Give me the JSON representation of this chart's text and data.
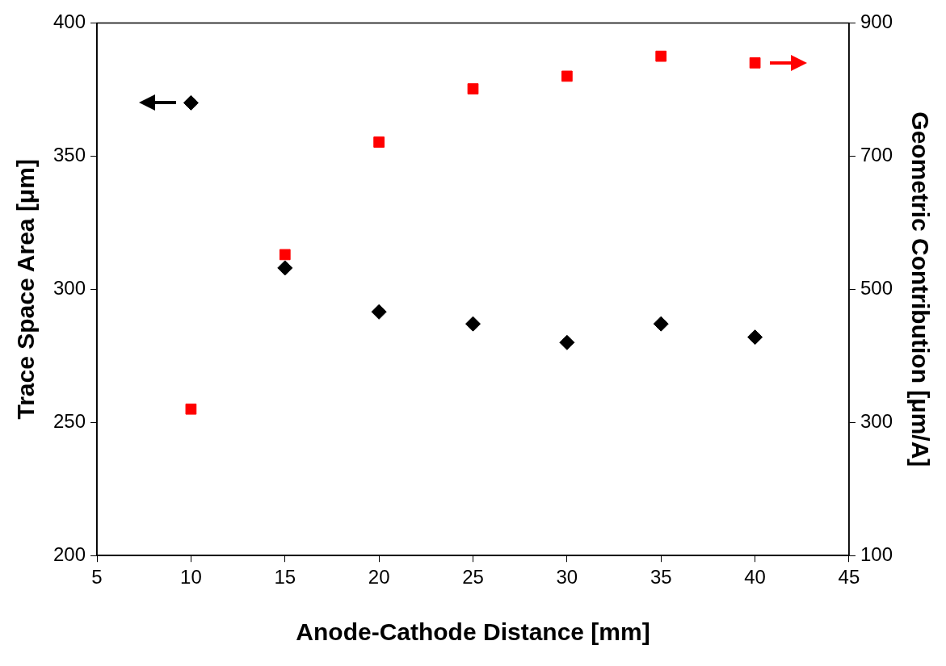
{
  "chart_data": {
    "type": "scatter",
    "xlabel": "Anode-Cathode Distance [mm]",
    "ylabel": "Trace Space Area [μm]",
    "y2label": "Geometric Contribution [μm/A]",
    "xlim": [
      5,
      45
    ],
    "xticks": [
      5,
      10,
      15,
      20,
      25,
      30,
      35,
      40,
      45
    ],
    "ylim": [
      200,
      400
    ],
    "yticks": [
      200,
      250,
      300,
      350,
      400
    ],
    "y2lim": [
      100,
      900
    ],
    "y2ticks": [
      100,
      300,
      500,
      700,
      900
    ],
    "grid": false,
    "legend": false,
    "series": [
      {
        "color": "#000000",
        "marker": "diamond",
        "x": [
          10,
          15,
          20,
          25,
          30,
          35,
          40
        ],
        "values": [
          370,
          308,
          291.5,
          287,
          280,
          287,
          282
        ]
      },
      {
        "color": "#ff0000",
        "marker": "square",
        "axis": "y2",
        "x": [
          10,
          15,
          20,
          25,
          30,
          35,
          40
        ],
        "values": [
          320,
          552,
          721,
          801,
          820,
          850,
          840
        ]
      }
    ]
  }
}
